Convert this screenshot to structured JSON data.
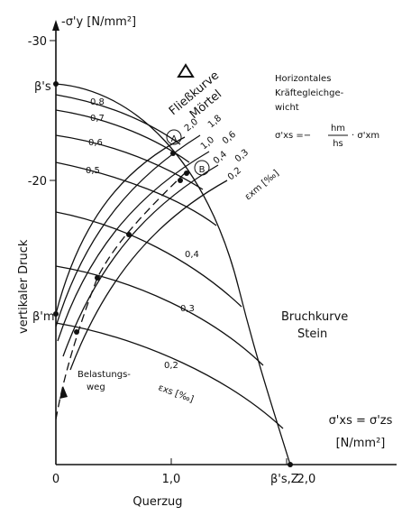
{
  "axes": {
    "y_label": "-σ'y [N/mm²]",
    "y_side_label": "vertikaler Druck",
    "x_label": "Querzug",
    "yticks": [
      "-30",
      "-20"
    ],
    "xticks": [
      "0",
      "1,0",
      "2,0"
    ],
    "x_unit_label": "σ'xs = σ'zs",
    "x_unit": "[N/mm²]"
  },
  "points": {
    "beta_s": "β's",
    "beta_m": "β'm",
    "beta_sz": "β's,Z",
    "A": "A",
    "B": "B"
  },
  "curves": {
    "flow": [
      "Fließkurve",
      "Mörtel"
    ],
    "fracture": [
      "Bruchkurve",
      "Stein"
    ],
    "load_path": [
      "Belastungs-",
      "weg"
    ],
    "exs_labels": [
      "0,8",
      "0,7",
      "0,6",
      "0,5",
      "0,4",
      "0,3",
      "0,2"
    ],
    "exs_unit": "εxs [‰]",
    "exm_labels": [
      "2,0",
      "1,8",
      "1,0",
      "0,6",
      "0,4",
      "0,3",
      "0,2"
    ],
    "exm_unit": "εxm [‰]"
  },
  "note": {
    "lines": [
      "Horizontales",
      "Kräftegleichge-",
      "wicht"
    ],
    "formula_lhs": "σ'xs =−",
    "formula_num": "hm",
    "formula_den": "hs",
    "formula_rhs": "· σ'xm"
  }
}
